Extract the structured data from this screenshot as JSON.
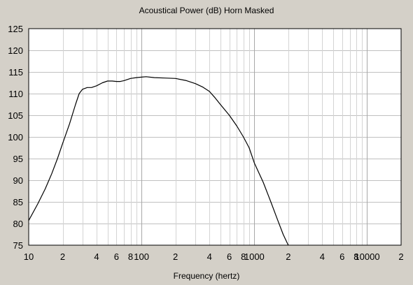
{
  "chart_data": {
    "type": "line",
    "title": "Acoustical Power (dB)    Horn    Masked",
    "xlabel": "Frequency (hertz)",
    "ylabel": "",
    "x_scale": "log",
    "xlim": [
      10,
      20000
    ],
    "ylim": [
      75,
      125
    ],
    "y_ticks": [
      75,
      80,
      85,
      90,
      95,
      100,
      105,
      110,
      115,
      120,
      125
    ],
    "x_tick_labels": [
      {
        "x": 10,
        "label": "10"
      },
      {
        "x": 20,
        "label": "2"
      },
      {
        "x": 40,
        "label": "4"
      },
      {
        "x": 60,
        "label": "6"
      },
      {
        "x": 80,
        "label": "8"
      },
      {
        "x": 100,
        "label": "100"
      },
      {
        "x": 200,
        "label": "2"
      },
      {
        "x": 400,
        "label": "4"
      },
      {
        "x": 600,
        "label": "6"
      },
      {
        "x": 800,
        "label": "8"
      },
      {
        "x": 1000,
        "label": "1000"
      },
      {
        "x": 2000,
        "label": "2"
      },
      {
        "x": 4000,
        "label": "4"
      },
      {
        "x": 6000,
        "label": "6"
      },
      {
        "x": 8000,
        "label": "8"
      },
      {
        "x": 10000,
        "label": "10000"
      },
      {
        "x": 20000,
        "label": "2"
      }
    ],
    "grid": true,
    "series": [
      {
        "color": "#000000",
        "points": [
          [
            10,
            80.7
          ],
          [
            12,
            84.5
          ],
          [
            14,
            88
          ],
          [
            16,
            91.5
          ],
          [
            18,
            95
          ],
          [
            20,
            98.5
          ],
          [
            23,
            103
          ],
          [
            26,
            107.5
          ],
          [
            28,
            110
          ],
          [
            30,
            111
          ],
          [
            33,
            111.4
          ],
          [
            36,
            111.4
          ],
          [
            40,
            111.8
          ],
          [
            45,
            112.5
          ],
          [
            50,
            112.9
          ],
          [
            55,
            112.9
          ],
          [
            60,
            112.8
          ],
          [
            65,
            112.8
          ],
          [
            70,
            113
          ],
          [
            80,
            113.5
          ],
          [
            90,
            113.7
          ],
          [
            100,
            113.8
          ],
          [
            110,
            113.9
          ],
          [
            130,
            113.7
          ],
          [
            160,
            113.6
          ],
          [
            200,
            113.5
          ],
          [
            250,
            113
          ],
          [
            300,
            112.3
          ],
          [
            350,
            111.5
          ],
          [
            400,
            110.5
          ],
          [
            450,
            109
          ],
          [
            500,
            107.5
          ],
          [
            600,
            105
          ],
          [
            700,
            102.5
          ],
          [
            800,
            100
          ],
          [
            900,
            97.5
          ],
          [
            1000,
            94
          ],
          [
            1200,
            89.5
          ],
          [
            1400,
            85
          ],
          [
            1600,
            81
          ],
          [
            1800,
            77.5
          ],
          [
            2000,
            75
          ]
        ]
      }
    ]
  }
}
